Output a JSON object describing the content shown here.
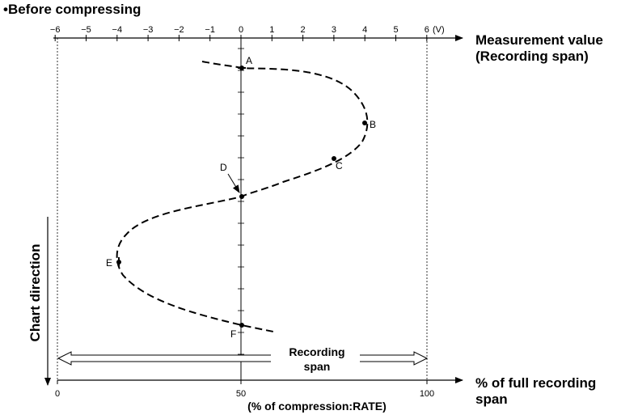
{
  "title": "•Before compressing",
  "top_axis": {
    "tick_values": [
      -6,
      -5,
      -4,
      -3,
      -2,
      -1,
      0,
      1,
      2,
      3,
      4,
      5,
      6
    ],
    "tick_labels": [
      "−6",
      "−5",
      "−4",
      "−3",
      "−2",
      "−1",
      "0",
      "1",
      "2",
      "3",
      "4",
      "5",
      "6"
    ],
    "unit": "(V)",
    "left_subaxis_labels": [
      "−6",
      "−4",
      "−2",
      "0"
    ],
    "label_line1": "Measurement value",
    "label_line2": "(Recording span)"
  },
  "bottom_axis": {
    "tick_labels": [
      "0",
      "50",
      "100"
    ],
    "label_line1": "% of full recording",
    "label_line2": "span",
    "sublabel": "(% of compression:RATE)"
  },
  "chart_direction_label": "Chart direction",
  "recording_span_label": [
    "Recording",
    "span"
  ],
  "waveform_points": [
    {
      "name": "A",
      "value_v": 0,
      "time": 0
    },
    {
      "name": "B",
      "value_v": 4,
      "time": 1
    },
    {
      "name": "C",
      "value_v": 3,
      "time": 1.5
    },
    {
      "name": "D",
      "value_v": 0,
      "time": 2
    },
    {
      "name": "E",
      "value_v": -4,
      "time": 3
    },
    {
      "name": "F",
      "value_v": 0,
      "time": 4
    }
  ]
}
